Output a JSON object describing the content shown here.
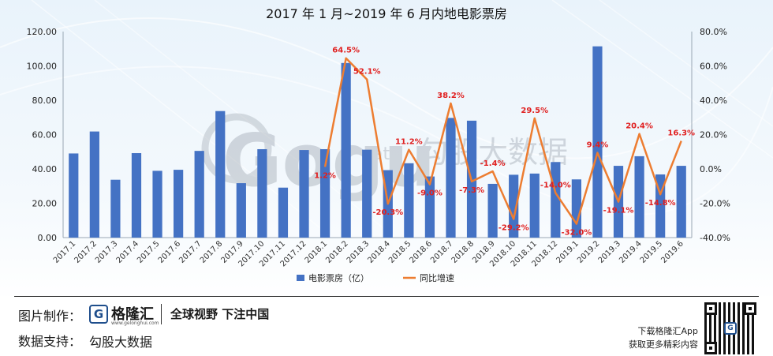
{
  "chart_data": {
    "type": "bar",
    "title": "2017 年 1 月~2019 年 6 月内地电影票房",
    "categories": [
      "2017.1",
      "2017.2",
      "2017.3",
      "2017.4",
      "2017.5",
      "2017.6",
      "2017.7",
      "2017.8",
      "2017.9",
      "2017.10",
      "2017.11",
      "2017.12",
      "2018.1",
      "2018.2",
      "2018.3",
      "2018.4",
      "2018.5",
      "2018.6",
      "2018.7",
      "2018.8",
      "2018.9",
      "2018.10",
      "2018.11",
      "2018.12",
      "2019.1",
      "2019.2",
      "2019.3",
      "2019.4",
      "2019.5",
      "2019.6"
    ],
    "series": [
      {
        "name": "电影票房（亿）",
        "type": "bar",
        "axis": "left",
        "color": "#4472c4",
        "values": [
          49.0,
          61.8,
          33.7,
          49.2,
          38.9,
          39.5,
          50.5,
          73.7,
          31.7,
          51.5,
          29.1,
          51.0,
          51.5,
          101.7,
          51.2,
          39.3,
          43.3,
          35.6,
          69.7,
          68.1,
          31.3,
          36.6,
          37.3,
          44.0,
          33.9,
          111.4,
          41.8,
          47.4,
          36.8,
          41.8
        ]
      },
      {
        "name": "同比增速",
        "type": "line",
        "axis": "right",
        "color": "#ed7d31",
        "values": [
          null,
          null,
          null,
          null,
          null,
          null,
          null,
          null,
          null,
          null,
          null,
          null,
          1.2,
          64.5,
          52.1,
          -20.3,
          11.2,
          -9.0,
          38.2,
          -7.3,
          -1.4,
          -29.2,
          29.5,
          -14.0,
          -32.0,
          9.4,
          -19.1,
          20.4,
          -14.8,
          16.3
        ],
        "labels": [
          "",
          "",
          "",
          "",
          "",
          "",
          "",
          "",
          "",
          "",
          "",
          "",
          "1.2%",
          "64.5%",
          "52.1%",
          "-20.3%",
          "11.2%",
          "-9.0%",
          "38.2%",
          "-7.3%",
          "-1.4%",
          "-29.2%",
          "29.5%",
          "-14.0%",
          "-32.0%",
          "9.4%",
          "-19.1%",
          "20.4%",
          "-14.8%",
          "16.3%"
        ]
      }
    ],
    "y_left": {
      "min": 0,
      "max": 120,
      "step": 20,
      "ticks": [
        "0.00",
        "20.00",
        "40.00",
        "60.00",
        "80.00",
        "100.00",
        "120.00"
      ]
    },
    "y_right": {
      "min": -40,
      "max": 80,
      "step": 20,
      "ticks": [
        "-40.0%",
        "-20.0%",
        "0.0%",
        "20.0%",
        "40.0%",
        "60.0%",
        "80.0%"
      ]
    },
    "legend_position": "bottom",
    "grid": false,
    "label_color": "#e02020"
  },
  "watermark": {
    "logo_text": "Gogu",
    "logo_sub": "data",
    "cn_text": "勾股大数据"
  },
  "footer": {
    "made_by_label": "图片制作：",
    "brand_icon": "G",
    "brand_name": "格隆汇",
    "brand_url": "www.gelonghui.com",
    "slogan": "全球视野 下注中国",
    "data_label": "数据支持：",
    "data_source": "勾股大数据",
    "promo_line1": "下载格隆汇App",
    "promo_line2": "获取更多精彩内容",
    "qr_icon": "G"
  }
}
